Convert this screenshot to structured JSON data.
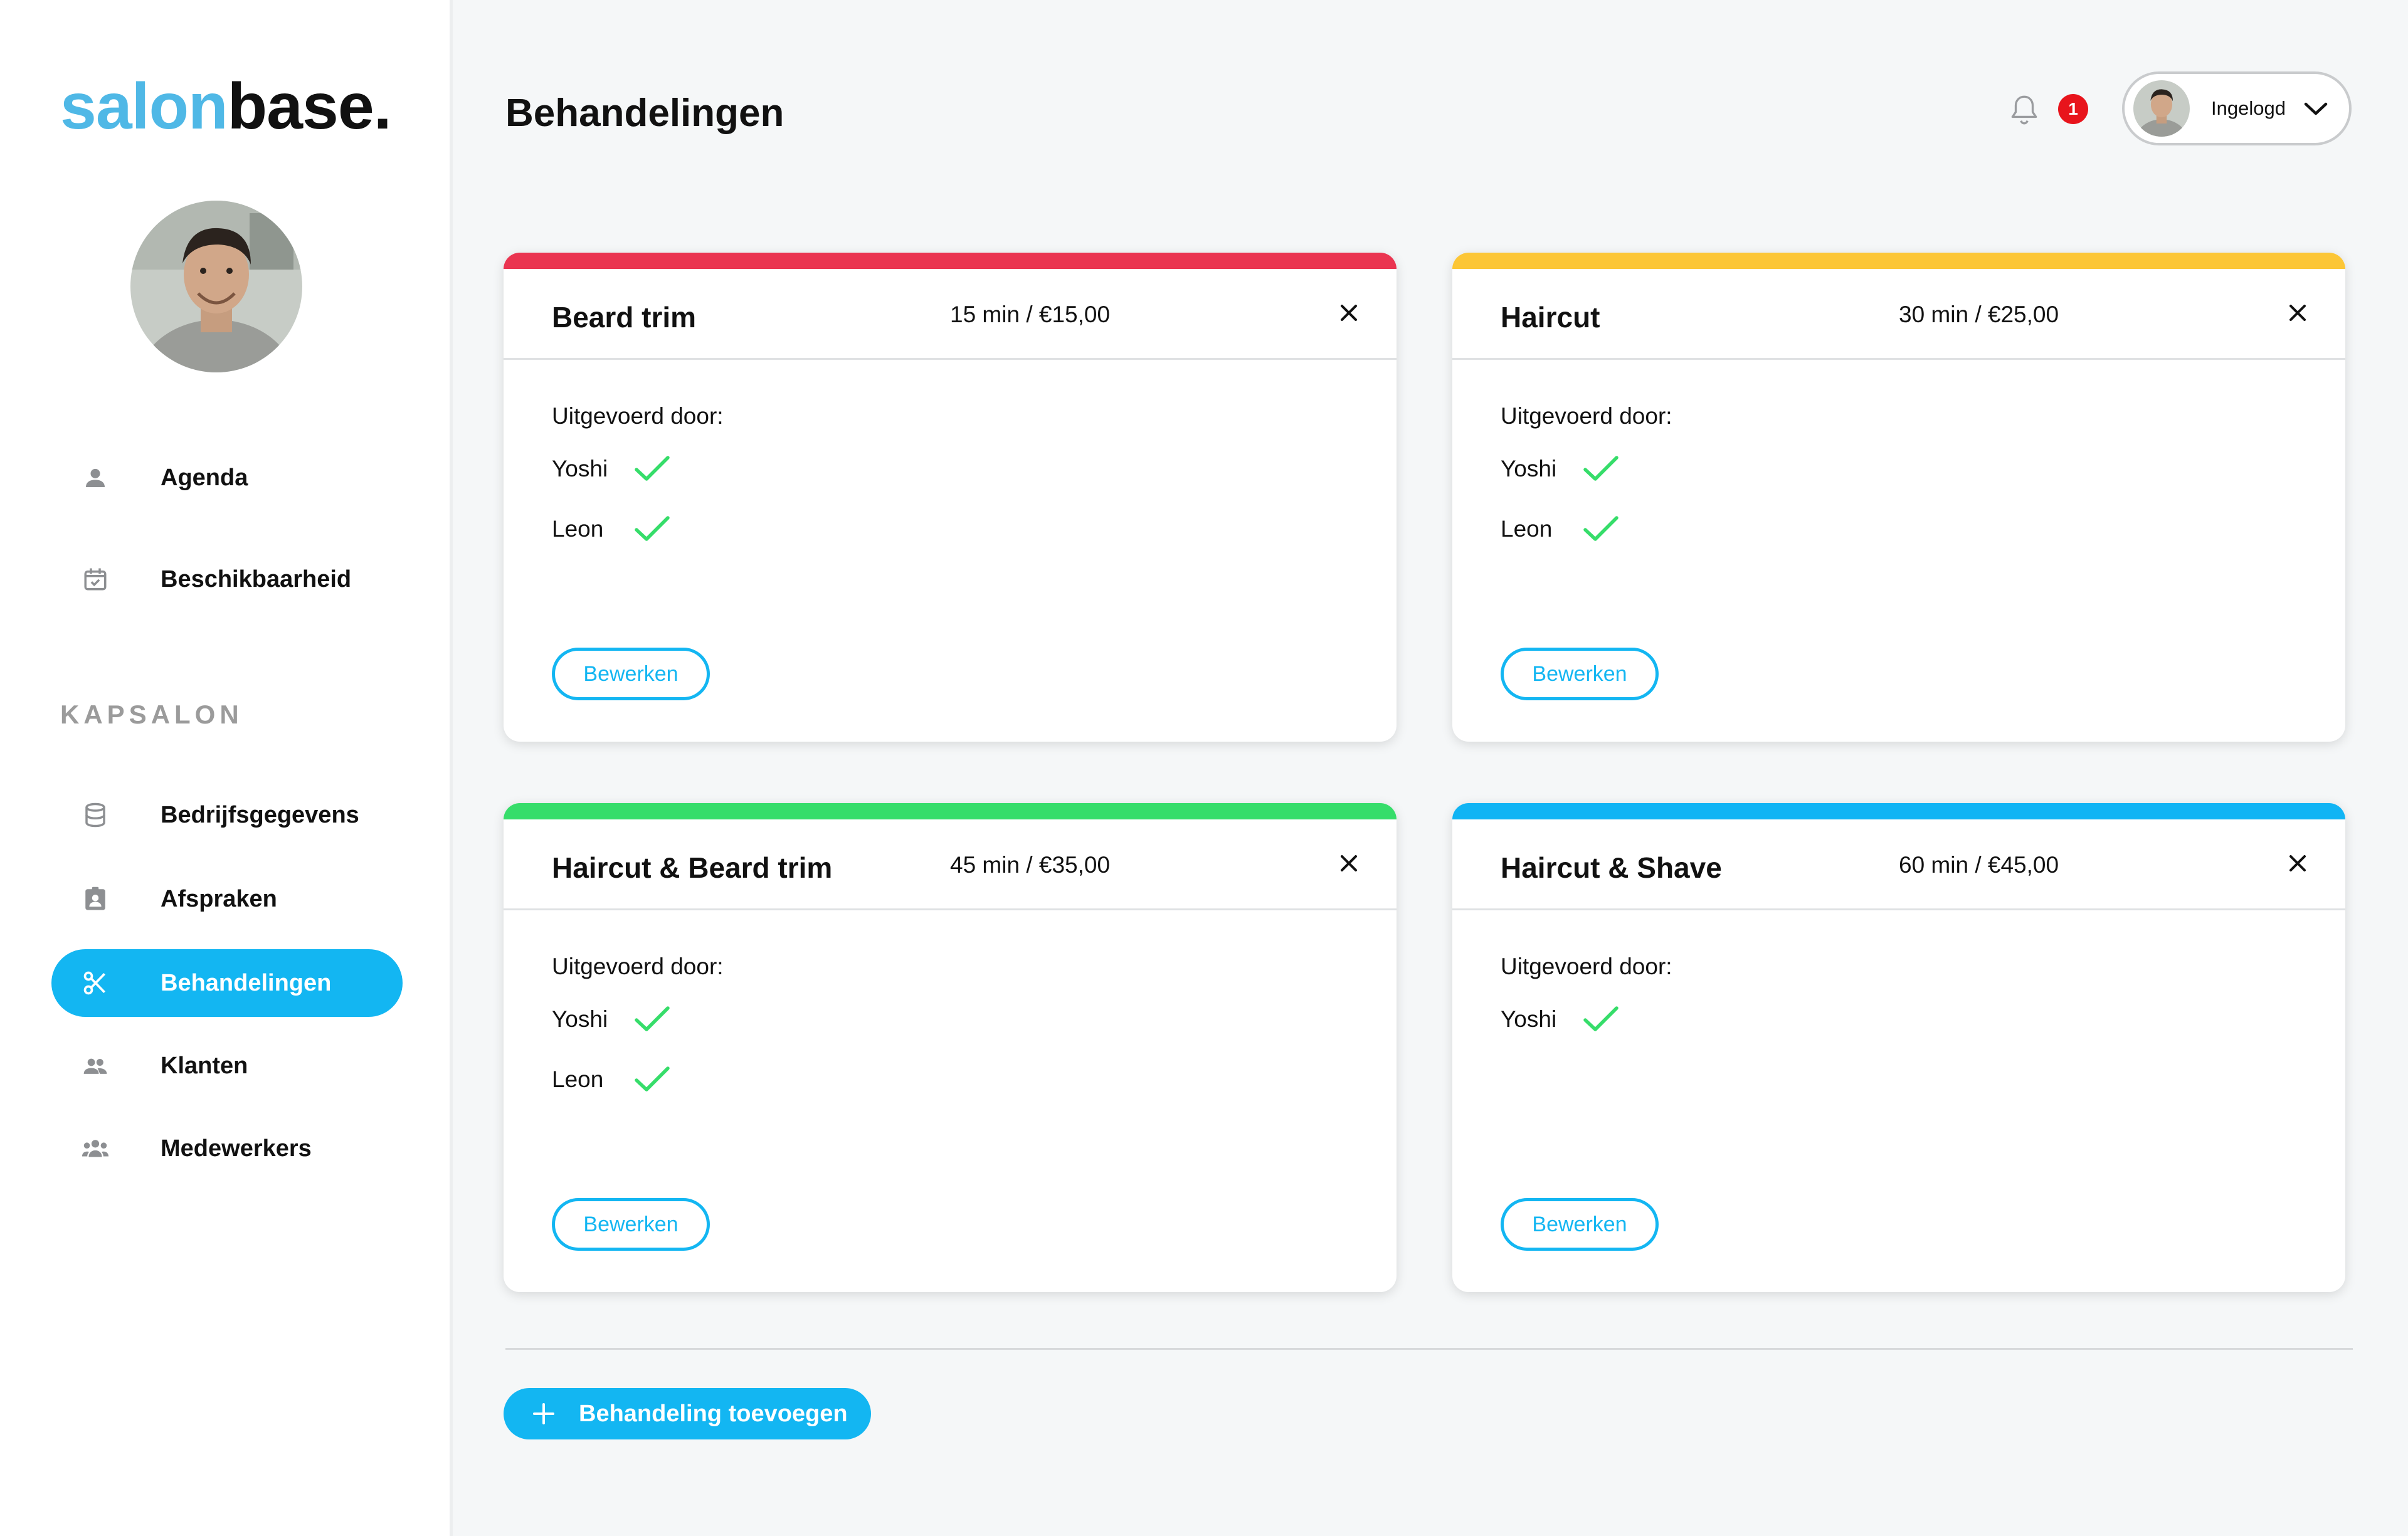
{
  "brand": {
    "part1": "salon",
    "part2": "base."
  },
  "header": {
    "title": "Behandelingen",
    "notification_count": "1",
    "user_label": "Ingelogd"
  },
  "sidebar": {
    "top_items": [
      {
        "label": "Agenda",
        "icon": "person-icon"
      },
      {
        "label": "Beschikbaarheid",
        "icon": "calendar-check-icon"
      }
    ],
    "section_label": "KAPSALON",
    "items": [
      {
        "label": "Bedrijfsgegevens",
        "icon": "database-icon"
      },
      {
        "label": "Afspraken",
        "icon": "contact-card-icon"
      },
      {
        "label": "Behandelingen",
        "icon": "scissors-icon",
        "active": true
      },
      {
        "label": "Klanten",
        "icon": "people-icon"
      },
      {
        "label": "Medewerkers",
        "icon": "group-icon"
      }
    ]
  },
  "treatments": [
    {
      "name": "Beard trim",
      "meta": "15 min / €15,00",
      "color": "#ea3450",
      "performed_label": "Uitgevoerd door:",
      "staff": [
        "Yoshi",
        "Leon"
      ],
      "edit_label": "Bewerken"
    },
    {
      "name": "Haircut",
      "meta": "30 min / €25,00",
      "color": "#fcc636",
      "performed_label": "Uitgevoerd door:",
      "staff": [
        "Yoshi",
        "Leon"
      ],
      "edit_label": "Bewerken"
    },
    {
      "name": "Haircut & Beard trim",
      "meta": "45 min / €35,00",
      "color": "#36dd6a",
      "performed_label": "Uitgevoerd door:",
      "staff": [
        "Yoshi",
        "Leon"
      ],
      "edit_label": "Bewerken"
    },
    {
      "name": "Haircut & Shave",
      "meta": "60 min / €45,00",
      "color": "#10b4f4",
      "performed_label": "Uitgevoerd door:",
      "staff": [
        "Yoshi"
      ],
      "edit_label": "Bewerken"
    }
  ],
  "add_button": {
    "label": "Behandeling toevoegen"
  },
  "colors": {
    "accent": "#13b6f2",
    "check": "#36dd6a",
    "badge": "#e8141c"
  }
}
